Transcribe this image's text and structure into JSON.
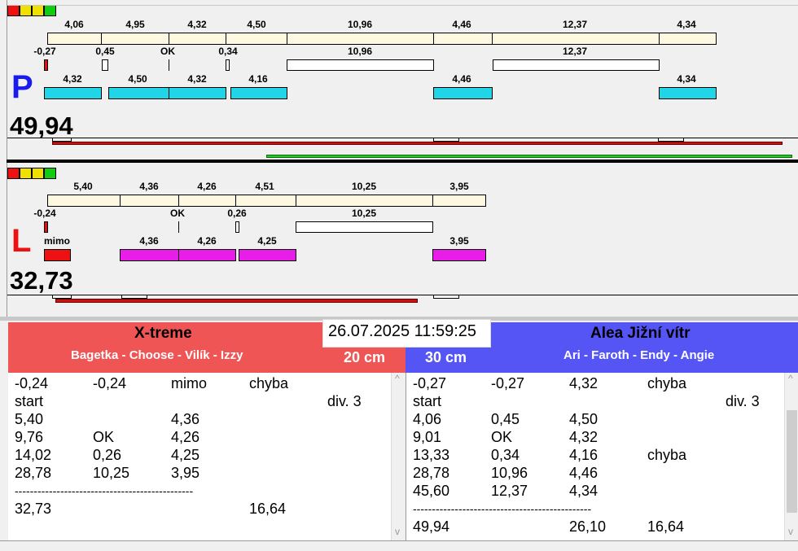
{
  "status_lamps": {
    "colors": [
      "#ee1111",
      "#f0e000",
      "#f0e000",
      "#11cc11"
    ]
  },
  "track_p": {
    "letter": "P",
    "letter_color": "#1a1aee",
    "total": "49,94",
    "top_values": [
      "4,06",
      "4,95",
      "4,32",
      "4,50",
      "10,96",
      "4,46",
      "12,37",
      "4,34"
    ],
    "mid_values": [
      "-0,27",
      "0,45",
      "OK",
      "0,34",
      "10,96",
      "12,37"
    ],
    "bottom_values": [
      "4,32",
      "4,50",
      "4,32",
      "4,16",
      "4,46",
      "4,34"
    ],
    "bar_color": "#20d6e6",
    "progress_colors": [
      "#cc1111",
      "#22cc22"
    ]
  },
  "track_l": {
    "letter": "L",
    "letter_color": "#ee1111",
    "total": "32,73",
    "top_values": [
      "5,40",
      "4,36",
      "4,26",
      "4,51",
      "10,25",
      "3,95"
    ],
    "mid_values": [
      "-0,24",
      "OK",
      "0,26",
      "10,25"
    ],
    "bottom_values": [
      "mimo",
      "4,36",
      "4,26",
      "4,25",
      "3,95"
    ],
    "bar_color": "#e81ee8",
    "progress_colors": [
      "#cc1111"
    ]
  },
  "datetime": "26.07.2025 11:59:25",
  "left_team": {
    "name": "X-treme",
    "members": "Bagetka - Choose - Vilík - Izzy",
    "height": "20 cm",
    "color": "#f05555",
    "rows": [
      [
        "-0,24",
        "-0,24",
        "mimo",
        "chyba",
        ""
      ],
      [
        "start",
        "",
        "",
        "",
        "div.  3"
      ],
      [
        "5,40",
        "",
        "4,36",
        "",
        ""
      ],
      [
        "9,76",
        "OK",
        "4,26",
        "",
        ""
      ],
      [
        "14,02",
        "0,26",
        "4,25",
        "",
        ""
      ],
      [
        "28,78",
        "10,25",
        "3,95",
        "",
        ""
      ],
      [
        "-----------------------------------------------",
        "",
        "",
        "",
        ""
      ],
      [
        "32,73",
        "",
        "",
        "16,64",
        ""
      ]
    ]
  },
  "right_team": {
    "name": "Alea Jižní vítr",
    "members": "Ari - Faroth - Endy - Angie",
    "height": "30 cm",
    "color": "#5555f5",
    "rows": [
      [
        "-0,27",
        "-0,27",
        "4,32",
        "chyba",
        ""
      ],
      [
        "start",
        "",
        "",
        "",
        "div.  3"
      ],
      [
        "4,06",
        "0,45",
        "4,50",
        "",
        ""
      ],
      [
        "9,01",
        "OK",
        "4,32",
        "",
        ""
      ],
      [
        "13,33",
        "0,34",
        "4,16",
        "chyba",
        ""
      ],
      [
        "28,78",
        "10,96",
        "4,46",
        "",
        ""
      ],
      [
        "45,60",
        "12,37",
        "4,34",
        "",
        ""
      ],
      [
        "-----------------------------------------------",
        "",
        "",
        "",
        ""
      ],
      [
        "49,94",
        "",
        "26,10",
        "16,64",
        ""
      ]
    ]
  },
  "scroll_arrows": {
    "up": "^",
    "down": "v"
  }
}
